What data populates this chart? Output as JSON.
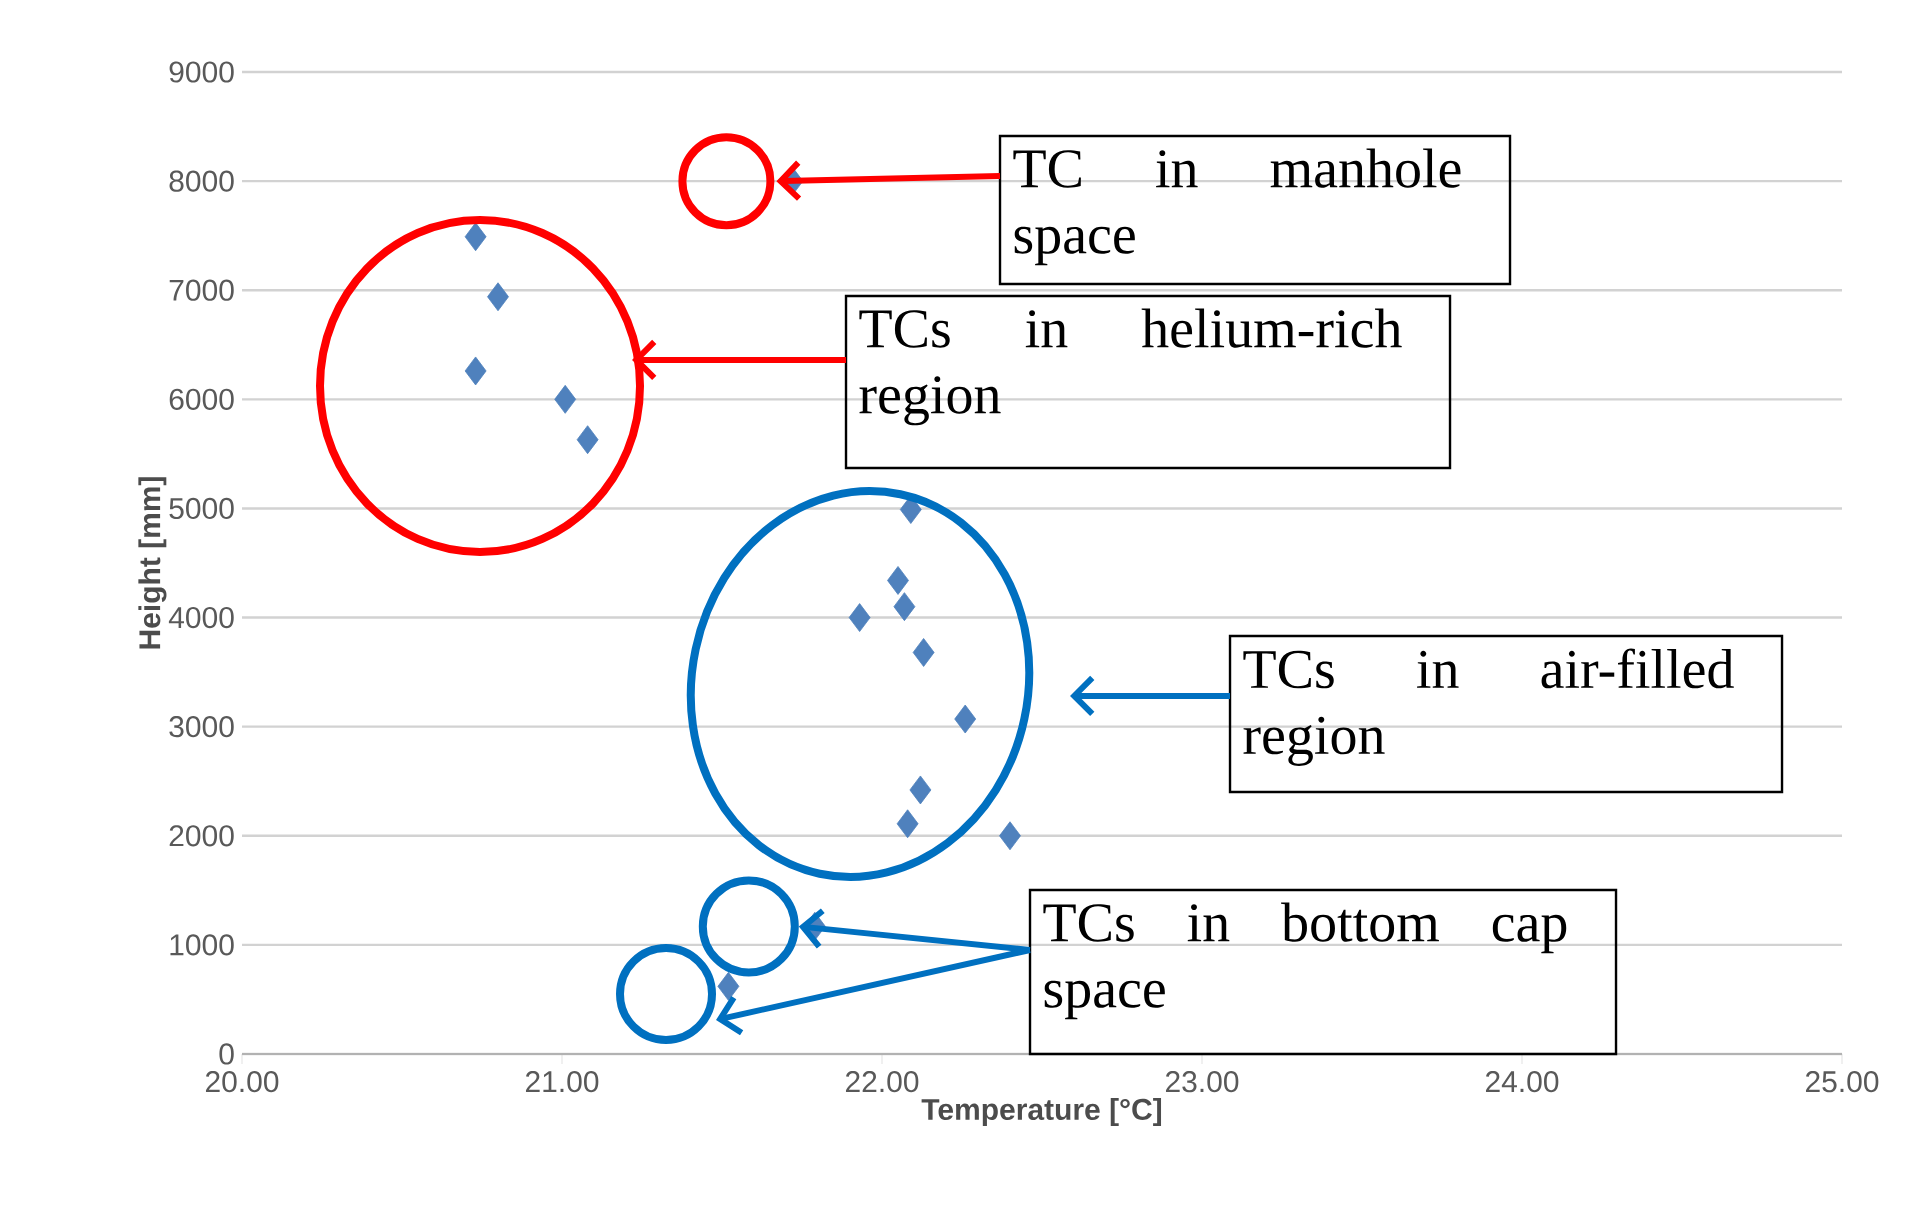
{
  "chart_data": {
    "type": "scatter",
    "xlabel": "Temperature [°C]",
    "ylabel": "Height [mm]",
    "color": "#4f81bd",
    "marker": "diamond",
    "grid": "y",
    "x": [
      21.72,
      20.73,
      20.8,
      20.73,
      21.01,
      21.08,
      22.09,
      22.05,
      22.07,
      21.93,
      22.13,
      22.26,
      22.12,
      22.08,
      22.4,
      21.79,
      21.52
    ],
    "values": [
      8000,
      7490,
      6940,
      6260,
      6000,
      5630,
      4990,
      4340,
      4100,
      4000,
      3680,
      3070,
      2420,
      2110,
      2000,
      1170,
      620
    ],
    "xlim": [
      20,
      25
    ],
    "ylim": [
      0,
      9000
    ],
    "xticks": [
      {
        "value": 20,
        "label": "20.00"
      },
      {
        "value": 21,
        "label": "21.00"
      },
      {
        "value": 22,
        "label": "22.00"
      },
      {
        "value": 23,
        "label": "23.00"
      },
      {
        "value": 24,
        "label": "24.00"
      },
      {
        "value": 25,
        "label": "25.00"
      }
    ],
    "yticks": [
      0,
      1000,
      2000,
      3000,
      4000,
      5000,
      6000,
      7000,
      8000,
      9000
    ],
    "annotations": [
      {
        "text": "TC in manhole space",
        "x": 21.72,
        "y": 8000
      },
      "TCs in helium-rich region",
      "TCs in air-filled region",
      {
        "text": "TCs in bottom cap space",
        "x": 21.79,
        "y": 1170
      }
    ]
  }
}
